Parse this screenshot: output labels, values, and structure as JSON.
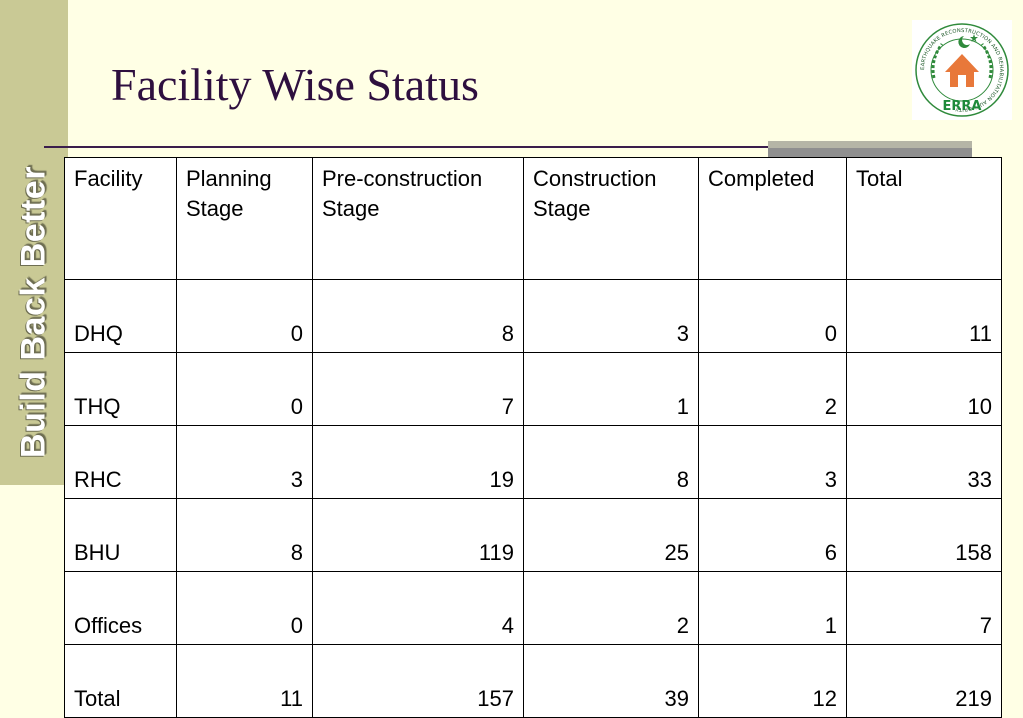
{
  "side_text": "Build Back Better",
  "title": "Facility Wise Status",
  "logo": {
    "icon": "erra-logo",
    "text": "ERRA",
    "ring_text": "EARTHQUAKE RECONSTRUCTION AND REHABILITATION AUTHORITY"
  },
  "colors": {
    "background": "#FFFFE5",
    "side_band": "#C9C995",
    "title": "#2E0F3F"
  },
  "table": {
    "headers": [
      "Facility",
      "Planning Stage",
      "Pre-construction Stage",
      "Construction Stage",
      "Completed",
      "Total"
    ],
    "rows": [
      [
        "DHQ",
        "0",
        "8",
        "3",
        "0",
        "11"
      ],
      [
        "THQ",
        "0",
        "7",
        "1",
        "2",
        "10"
      ],
      [
        "RHC",
        "3",
        "19",
        "8",
        "3",
        "33"
      ],
      [
        "BHU",
        "8",
        "119",
        "25",
        "6",
        "158"
      ],
      [
        "Offices",
        "0",
        "4",
        "2",
        "1",
        "7"
      ],
      [
        "Total",
        "11",
        "157",
        "39",
        "12",
        "219"
      ]
    ]
  }
}
